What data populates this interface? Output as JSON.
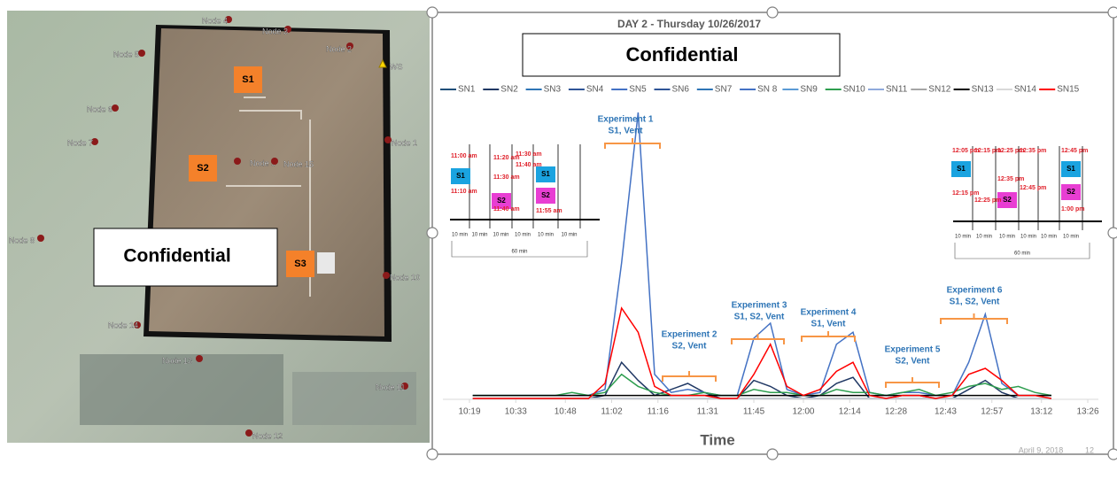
{
  "map": {
    "nodes": [
      "Node 4",
      "Node 3",
      "Node 2",
      "WS",
      "Node 5",
      "Node 6",
      "Node 7",
      "Node 8",
      "Node 9",
      "Node 15",
      "Node 1",
      "Node 10",
      "Node 14",
      "Node 13",
      "Node 11",
      "Node 12"
    ],
    "sources": [
      "S1",
      "S2",
      "S3"
    ],
    "confidential": "Confidential"
  },
  "chart_data": {
    "type": "line",
    "title": "DAY 2 - Thursday 10/26/2017",
    "confidential": "Confidential",
    "xlabel": "Time",
    "x": [
      "10:20",
      "10:25",
      "10:30",
      "10:35",
      "10:40",
      "10:45",
      "10:50",
      "10:55",
      "11:00",
      "11:05",
      "11:10",
      "11:15",
      "11:20",
      "11:25",
      "11:30",
      "11:35",
      "11:40",
      "11:45",
      "11:50",
      "11:55",
      "12:00",
      "12:05",
      "12:10",
      "12:15",
      "12:20",
      "12:25",
      "12:30",
      "12:35",
      "12:40",
      "12:45",
      "12:50",
      "12:55",
      "13:00",
      "13:05",
      "13:10",
      "13:15"
    ],
    "xlim": [
      "10:19",
      "13:26"
    ],
    "xticks": [
      "10:19",
      "10:33",
      "10:48",
      "11:02",
      "11:16",
      "11:31",
      "11:45",
      "12:00",
      "12:14",
      "12:28",
      "12:43",
      "12:57",
      "13:12",
      "13:26"
    ],
    "ylim": [
      0,
      100
    ],
    "series": [
      {
        "name": "SN1",
        "color": "#1f4e79",
        "values": [
          0,
          0,
          0,
          0,
          0,
          0,
          0,
          0,
          0,
          0,
          0,
          0,
          0,
          0,
          0,
          0,
          0,
          0,
          0,
          0,
          0,
          0,
          0,
          0,
          0,
          0,
          0,
          0,
          0,
          0,
          0,
          0,
          0,
          0,
          0,
          0
        ]
      },
      {
        "name": "SN2",
        "color": "#203864",
        "values": [
          0,
          0,
          0,
          0,
          0,
          0,
          0,
          0,
          1,
          12,
          6,
          1,
          3,
          5,
          2,
          0,
          0,
          6,
          4,
          1,
          0,
          1,
          5,
          7,
          0,
          0,
          1,
          1,
          0,
          0,
          3,
          6,
          2,
          0,
          0,
          0
        ]
      },
      {
        "name": "SN3",
        "color": "#2e75b6",
        "values": [
          0,
          0,
          0,
          0,
          0,
          0,
          0,
          0,
          0,
          0,
          0,
          0,
          0,
          0,
          0,
          0,
          0,
          0,
          0,
          0,
          0,
          0,
          0,
          0,
          0,
          0,
          0,
          0,
          0,
          0,
          0,
          0,
          0,
          0,
          0,
          0
        ]
      },
      {
        "name": "SN4",
        "color": "#2f5597",
        "values": [
          0,
          0,
          0,
          0,
          0,
          0,
          0,
          0,
          0,
          0,
          0,
          0,
          0,
          0,
          0,
          0,
          0,
          0,
          0,
          0,
          0,
          0,
          0,
          0,
          0,
          0,
          0,
          0,
          0,
          0,
          0,
          0,
          0,
          0,
          0,
          0
        ]
      },
      {
        "name": "SN5",
        "color": "#4472c4",
        "values": [
          1,
          1,
          1,
          1,
          1,
          1,
          1,
          1,
          3,
          45,
          95,
          8,
          2,
          3,
          2,
          1,
          1,
          20,
          25,
          3,
          1,
          2,
          18,
          22,
          2,
          1,
          2,
          2,
          1,
          1,
          12,
          28,
          5,
          1,
          1,
          1
        ]
      },
      {
        "name": "SN6",
        "color": "#2f5597",
        "values": [
          0,
          0,
          0,
          0,
          0,
          0,
          0,
          0,
          0,
          0,
          0,
          0,
          0,
          0,
          0,
          0,
          0,
          0,
          0,
          0,
          0,
          0,
          0,
          0,
          0,
          0,
          0,
          0,
          0,
          0,
          0,
          0,
          0,
          0,
          0,
          0
        ]
      },
      {
        "name": "SN7",
        "color": "#2e75b6",
        "values": [
          0,
          0,
          0,
          0,
          0,
          0,
          0,
          0,
          0,
          0,
          0,
          0,
          0,
          0,
          0,
          0,
          0,
          0,
          0,
          0,
          0,
          0,
          0,
          0,
          0,
          0,
          0,
          0,
          0,
          0,
          0,
          0,
          0,
          0,
          0,
          0
        ]
      },
      {
        "name": "SN 8",
        "color": "#4472c4",
        "values": [
          0,
          0,
          0,
          0,
          0,
          0,
          0,
          0,
          0,
          0,
          0,
          0,
          0,
          0,
          0,
          0,
          0,
          0,
          0,
          0,
          0,
          0,
          0,
          0,
          0,
          0,
          0,
          0,
          0,
          0,
          0,
          0,
          0,
          0,
          0,
          0
        ]
      },
      {
        "name": "SN9",
        "color": "#5b9bd5",
        "values": [
          0,
          0,
          0,
          0,
          0,
          0,
          0,
          0,
          0,
          0,
          0,
          0,
          0,
          0,
          0,
          0,
          0,
          0,
          0,
          0,
          0,
          0,
          0,
          0,
          0,
          0,
          0,
          0,
          0,
          0,
          0,
          0,
          0,
          0,
          0,
          0
        ]
      },
      {
        "name": "SN10",
        "color": "#2e9e4f",
        "values": [
          1,
          1,
          1,
          1,
          1,
          1,
          2,
          1,
          2,
          8,
          4,
          2,
          1,
          1,
          2,
          1,
          1,
          3,
          2,
          2,
          1,
          1,
          3,
          2,
          2,
          1,
          2,
          3,
          1,
          2,
          4,
          5,
          3,
          4,
          2,
          1
        ]
      },
      {
        "name": "SN11",
        "color": "#8faadc",
        "values": [
          0,
          0,
          0,
          0,
          0,
          0,
          0,
          0,
          0,
          0,
          0,
          0,
          0,
          0,
          0,
          0,
          0,
          0,
          0,
          0,
          0,
          0,
          0,
          0,
          0,
          0,
          0,
          0,
          0,
          0,
          0,
          0,
          0,
          0,
          0,
          0
        ]
      },
      {
        "name": "SN12",
        "color": "#a5a5a5",
        "values": [
          0,
          0,
          0,
          0,
          0,
          0,
          0,
          0,
          0,
          0,
          0,
          0,
          0,
          0,
          0,
          0,
          0,
          0,
          0,
          0,
          0,
          0,
          0,
          0,
          0,
          0,
          0,
          0,
          0,
          0,
          0,
          0,
          0,
          0,
          0,
          0
        ]
      },
      {
        "name": "SN13",
        "color": "#000000",
        "values": [
          1,
          1,
          1,
          1,
          1,
          1,
          1,
          1,
          1,
          1,
          1,
          1,
          1,
          1,
          1,
          1,
          1,
          1,
          1,
          1,
          1,
          1,
          1,
          1,
          1,
          1,
          1,
          1,
          1,
          1,
          1,
          1,
          1,
          1,
          1,
          1
        ]
      },
      {
        "name": "SN14",
        "color": "#d9d9d9",
        "values": [
          0,
          0,
          0,
          0,
          0,
          0,
          0,
          0,
          0,
          0,
          0,
          0,
          0,
          0,
          0,
          0,
          0,
          0,
          0,
          0,
          0,
          0,
          0,
          0,
          0,
          0,
          0,
          0,
          0,
          0,
          0,
          0,
          0,
          0,
          0,
          0
        ]
      },
      {
        "name": "SN15",
        "color": "#ff0000",
        "values": [
          0,
          0,
          0,
          0,
          0,
          0,
          0,
          0,
          5,
          30,
          22,
          4,
          1,
          1,
          1,
          0,
          0,
          8,
          18,
          4,
          1,
          3,
          9,
          12,
          1,
          0,
          1,
          1,
          0,
          1,
          8,
          10,
          6,
          1,
          1,
          0
        ]
      }
    ],
    "annotations": [
      [
        "Experiment 1",
        "S1, Vent"
      ],
      [
        "Experiment 2",
        "S2, Vent"
      ],
      [
        "Experiment 3",
        "S1, S2, Vent"
      ],
      [
        "Experiment 4",
        "S1, Vent"
      ],
      [
        "Experiment 5",
        "S2, Vent"
      ],
      [
        "Experiment 6",
        "S1, S2, Vent"
      ]
    ],
    "schedule_left": {
      "times": [
        "11:00 am",
        "11:10 am",
        "11:20 am",
        "11:30 am",
        "11:40 am",
        "11:30 am",
        "11:40 am",
        "11:55 am"
      ],
      "boxes": [
        "S1",
        "S2",
        "S1",
        "S2"
      ],
      "durations": [
        "10 min",
        "10 min",
        "10 min",
        "10 min",
        "10 min",
        "10 min"
      ],
      "total": "60 min"
    },
    "schedule_right": {
      "times": [
        "12:05 pm",
        "12:15 pm",
        "12:15 pm",
        "12:25 pm",
        "12:25 pm",
        "12:35 pm",
        "12:35 pm",
        "12:45 pm",
        "12:45 pm",
        "1:00 pm"
      ],
      "boxes": [
        "S1",
        "S2",
        "S1",
        "S2"
      ],
      "durations": [
        "10 min",
        "10 min",
        "10 min",
        "10 min",
        "10 min",
        "10 min"
      ],
      "total": "60 min"
    }
  },
  "footer": {
    "date": "April 9, 2018",
    "page": "12"
  }
}
